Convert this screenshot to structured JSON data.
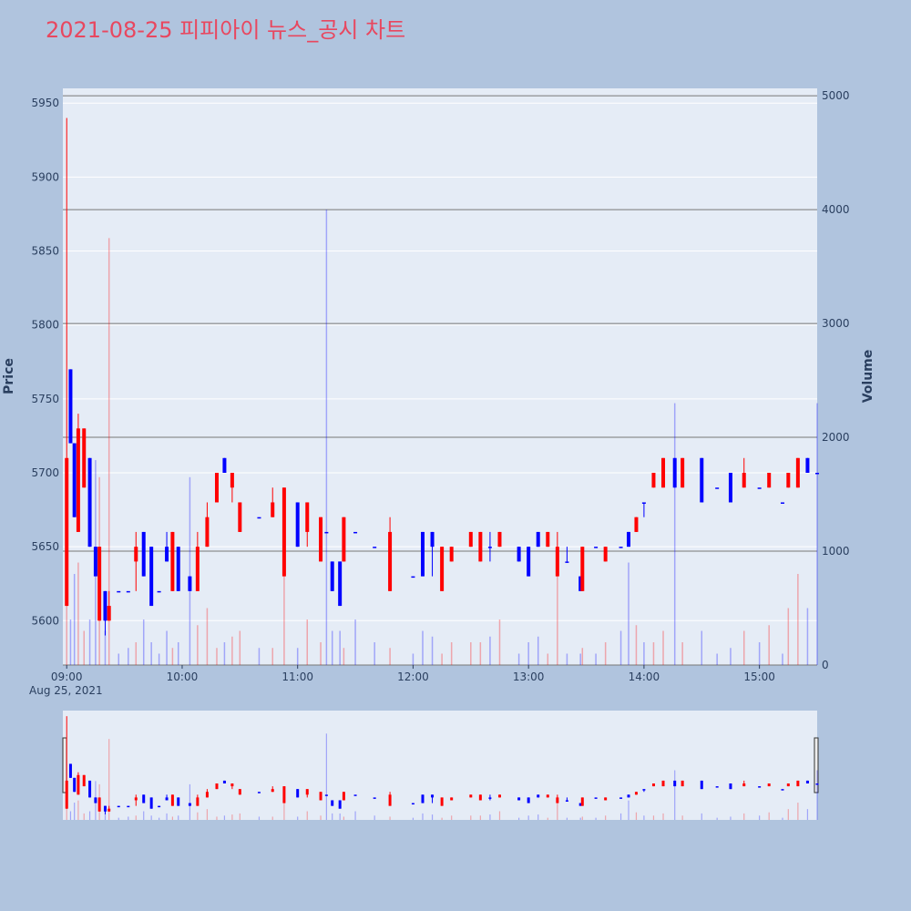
{
  "chart_data": {
    "type": "candlestick",
    "title": "2021-08-25 피피아이 뉴스_공시 차트",
    "y_title": "Price",
    "y2_title": "Volume",
    "x_date_label": "Aug 25, 2021",
    "increasing_color": "#ff0000",
    "decreasing_color": "#0000ff",
    "volume_increasing_color": "rgba(255,0,0,0.3)",
    "volume_decreasing_color": "rgba(0,0,255,0.3)",
    "xlim": [
      "2021-08-25 08:58",
      "2021-08-25 15:30"
    ],
    "xticks": [
      {
        "value": "2021-08-25 09:00",
        "label": "09:00"
      },
      {
        "value": "2021-08-25 10:00",
        "label": "10:00"
      },
      {
        "value": "2021-08-25 11:00",
        "label": "11:00"
      },
      {
        "value": "2021-08-25 12:00",
        "label": "12:00"
      },
      {
        "value": "2021-08-25 13:00",
        "label": "13:00"
      },
      {
        "value": "2021-08-25 14:00",
        "label": "14:00"
      },
      {
        "value": "2021-08-25 15:00",
        "label": "15:00"
      }
    ],
    "ylim": [
      5570,
      5960
    ],
    "yticks": [
      5600,
      5650,
      5700,
      5750,
      5800,
      5850,
      5900,
      5950
    ],
    "y2lim": [
      0,
      5065
    ],
    "y2ticks": [
      0,
      1000,
      2000,
      3000,
      4000,
      5000
    ],
    "x": [
      "2021-08-25 09:00",
      "2021-08-25 09:02",
      "2021-08-25 09:04",
      "2021-08-25 09:06",
      "2021-08-25 09:09",
      "2021-08-25 09:12",
      "2021-08-25 09:15",
      "2021-08-25 09:17",
      "2021-08-25 09:20",
      "2021-08-25 09:22",
      "2021-08-25 09:27",
      "2021-08-25 09:32",
      "2021-08-25 09:36",
      "2021-08-25 09:40",
      "2021-08-25 09:44",
      "2021-08-25 09:48",
      "2021-08-25 09:52",
      "2021-08-25 09:55",
      "2021-08-25 09:58",
      "2021-08-25 10:04",
      "2021-08-25 10:08",
      "2021-08-25 10:13",
      "2021-08-25 10:18",
      "2021-08-25 10:22",
      "2021-08-25 10:26",
      "2021-08-25 10:30",
      "2021-08-25 10:40",
      "2021-08-25 10:47",
      "2021-08-25 10:53",
      "2021-08-25 11:00",
      "2021-08-25 11:05",
      "2021-08-25 11:12",
      "2021-08-25 11:15",
      "2021-08-25 11:18",
      "2021-08-25 11:22",
      "2021-08-25 11:24",
      "2021-08-25 11:30",
      "2021-08-25 11:40",
      "2021-08-25 11:48",
      "2021-08-25 12:00",
      "2021-08-25 12:05",
      "2021-08-25 12:10",
      "2021-08-25 12:15",
      "2021-08-25 12:20",
      "2021-08-25 12:30",
      "2021-08-25 12:35",
      "2021-08-25 12:40",
      "2021-08-25 12:45",
      "2021-08-25 12:55",
      "2021-08-25 13:00",
      "2021-08-25 13:05",
      "2021-08-25 13:10",
      "2021-08-25 13:15",
      "2021-08-25 13:20",
      "2021-08-25 13:27",
      "2021-08-25 13:28",
      "2021-08-25 13:35",
      "2021-08-25 13:40",
      "2021-08-25 13:48",
      "2021-08-25 13:52",
      "2021-08-25 13:56",
      "2021-08-25 14:00",
      "2021-08-25 14:05",
      "2021-08-25 14:10",
      "2021-08-25 14:16",
      "2021-08-25 14:20",
      "2021-08-25 14:30",
      "2021-08-25 14:38",
      "2021-08-25 14:45",
      "2021-08-25 14:52",
      "2021-08-25 15:00",
      "2021-08-25 15:05",
      "2021-08-25 15:12",
      "2021-08-25 15:15",
      "2021-08-25 15:20",
      "2021-08-25 15:25",
      "2021-08-25 15:30"
    ],
    "open": [
      5610,
      5770,
      5720,
      5660,
      5690,
      5710,
      5650,
      5600,
      5620,
      5600,
      5620,
      5620,
      5640,
      5660,
      5650,
      5620,
      5650,
      5620,
      5650,
      5630,
      5620,
      5650,
      5680,
      5710,
      5690,
      5660,
      5670,
      5670,
      5630,
      5680,
      5660,
      5640,
      5660,
      5640,
      5640,
      5640,
      5660,
      5650,
      5620,
      5630,
      5660,
      5660,
      5620,
      5640,
      5650,
      5640,
      5650,
      5650,
      5650,
      5650,
      5660,
      5650,
      5630,
      5640,
      5630,
      5620,
      5650,
      5640,
      5650,
      5660,
      5660,
      5680,
      5690,
      5690,
      5710,
      5690,
      5710,
      5690,
      5700,
      5690,
      5690,
      5690,
      5680,
      5690,
      5690,
      5710,
      5700
    ],
    "high": [
      5940,
      5770,
      5720,
      5740,
      5730,
      5710,
      5650,
      5650,
      5620,
      5620,
      5620,
      5620,
      5660,
      5660,
      5650,
      5620,
      5660,
      5660,
      5650,
      5630,
      5660,
      5680,
      5700,
      5710,
      5700,
      5680,
      5670,
      5690,
      5690,
      5680,
      5680,
      5670,
      5660,
      5640,
      5640,
      5670,
      5660,
      5650,
      5670,
      5630,
      5660,
      5660,
      5650,
      5650,
      5660,
      5660,
      5660,
      5660,
      5650,
      5650,
      5660,
      5660,
      5660,
      5650,
      5630,
      5650,
      5650,
      5650,
      5650,
      5660,
      5670,
      5680,
      5700,
      5710,
      5710,
      5710,
      5710,
      5690,
      5700,
      5710,
      5690,
      5700,
      5680,
      5700,
      5710,
      5710,
      5700
    ],
    "low": [
      5610,
      5720,
      5670,
      5660,
      5690,
      5650,
      5630,
      5600,
      5590,
      5600,
      5620,
      5620,
      5620,
      5630,
      5610,
      5620,
      5640,
      5620,
      5620,
      5620,
      5620,
      5650,
      5680,
      5700,
      5680,
      5660,
      5670,
      5670,
      5630,
      5650,
      5650,
      5640,
      5660,
      5620,
      5610,
      5640,
      5660,
      5650,
      5620,
      5630,
      5630,
      5630,
      5620,
      5640,
      5650,
      5640,
      5640,
      5650,
      5640,
      5630,
      5650,
      5650,
      5630,
      5640,
      5620,
      5620,
      5650,
      5640,
      5650,
      5650,
      5660,
      5670,
      5690,
      5690,
      5690,
      5690,
      5680,
      5690,
      5680,
      5690,
      5690,
      5690,
      5680,
      5690,
      5690,
      5700,
      5700
    ],
    "close": [
      5710,
      5720,
      5670,
      5730,
      5730,
      5650,
      5630,
      5650,
      5600,
      5610,
      5620,
      5620,
      5650,
      5630,
      5610,
      5620,
      5640,
      5660,
      5620,
      5620,
      5650,
      5670,
      5700,
      5700,
      5700,
      5680,
      5670,
      5680,
      5690,
      5650,
      5680,
      5670,
      5660,
      5620,
      5610,
      5670,
      5660,
      5650,
      5660,
      5630,
      5630,
      5650,
      5650,
      5650,
      5660,
      5660,
      5650,
      5660,
      5640,
      5630,
      5650,
      5660,
      5650,
      5640,
      5620,
      5650,
      5650,
      5650,
      5650,
      5650,
      5670,
      5680,
      5700,
      5710,
      5690,
      5710,
      5680,
      5690,
      5680,
      5700,
      5690,
      5700,
      5680,
      5700,
      5710,
      5700,
      5700
    ],
    "volume": [
      1200,
      400,
      800,
      900,
      300,
      400,
      1800,
      1650,
      300,
      3750,
      100,
      150,
      200,
      400,
      200,
      100,
      300,
      150,
      200,
      1650,
      350,
      500,
      150,
      200,
      250,
      300,
      150,
      150,
      800,
      150,
      400,
      200,
      4000,
      300,
      300,
      150,
      400,
      200,
      150,
      100,
      300,
      250,
      100,
      200,
      200,
      200,
      250,
      400,
      100,
      200,
      250,
      100,
      900,
      100,
      100,
      150,
      100,
      200,
      300,
      900,
      350,
      200,
      200,
      300,
      2300,
      200,
      300,
      100,
      150,
      300,
      200,
      350,
      100,
      500,
      800,
      500,
      2300
    ]
  }
}
